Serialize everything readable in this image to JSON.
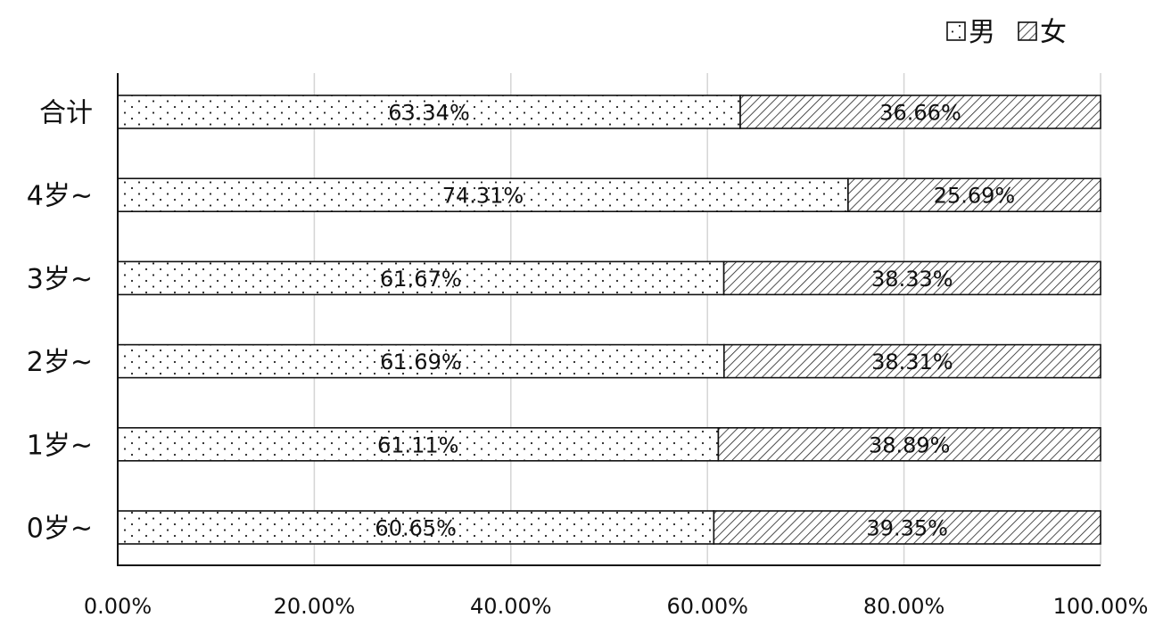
{
  "chart_data": {
    "type": "bar",
    "orientation": "horizontal",
    "stacked": true,
    "categories": [
      "合计",
      "4岁~",
      "3岁~",
      "2岁~",
      "1岁~",
      "0岁~"
    ],
    "series": [
      {
        "name": "男",
        "values": [
          63.34,
          74.31,
          61.67,
          61.69,
          61.11,
          60.65
        ],
        "labels": [
          "63.34%",
          "74.31%",
          "61.67%",
          "61.69%",
          "61.11%",
          "60.65%"
        ],
        "pattern": "dots"
      },
      {
        "name": "女",
        "values": [
          36.66,
          25.69,
          38.33,
          38.31,
          38.89,
          39.35
        ],
        "labels": [
          "36.66%",
          "25.69%",
          "38.33%",
          "38.31%",
          "38.89%",
          "39.35%"
        ],
        "pattern": "hatch"
      }
    ],
    "xlim": [
      0,
      100
    ],
    "xticks": [
      0,
      20,
      40,
      60,
      80,
      100
    ],
    "xtick_labels": [
      "0.00%",
      "20.00%",
      "40.00%",
      "60.00%",
      "80.00%",
      "100.00%"
    ],
    "grid": true,
    "legend_position": "top-right"
  }
}
